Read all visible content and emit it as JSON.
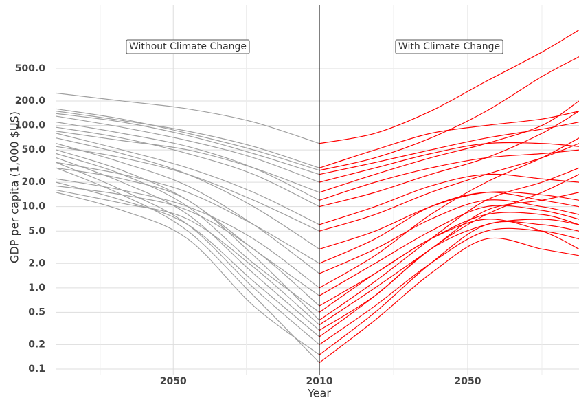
{
  "chart_data": [
    {
      "type": "line",
      "panel_title": "Without Climate Change",
      "y_label": "GDP per capita (1,000 $US)",
      "color": "#a0a0a0",
      "yscale": "log",
      "grid": true,
      "x": [
        2010,
        2028,
        2046,
        2064,
        2082
      ],
      "xlim": [
        2082,
        2010
      ],
      "xticks": [
        2050
      ],
      "xticks_minor": [
        2030,
        2070
      ],
      "ylim": [
        0.1,
        3000
      ],
      "yticks": [
        0.1,
        0.2,
        0.5,
        {
          "value": 1,
          "label": "1.0"
        },
        {
          "value": 2,
          "label": "2.0"
        },
        {
          "value": 5,
          "label": "5.0"
        },
        {
          "value": 10,
          "label": "10.0"
        },
        {
          "value": 20,
          "label": "20.0"
        },
        {
          "value": 50,
          "label": "50.0"
        },
        {
          "value": 100,
          "label": "100.0"
        },
        {
          "value": 200,
          "label": "200.0"
        },
        {
          "value": 500,
          "label": "500.0"
        }
      ],
      "series": [
        {
          "values": [
            60,
            110,
            160,
            200,
            250
          ]
        },
        {
          "values": [
            28,
            50,
            80,
            120,
            160
          ]
        },
        {
          "values": [
            30,
            55,
            85,
            115,
            150
          ]
        },
        {
          "values": [
            25,
            45,
            75,
            110,
            140
          ]
        },
        {
          "values": [
            20,
            40,
            65,
            95,
            130
          ]
        },
        {
          "values": [
            12,
            30,
            55,
            80,
            110
          ]
        },
        {
          "values": [
            6,
            15,
            30,
            50,
            80
          ]
        },
        {
          "values": [
            3,
            10,
            25,
            45,
            70
          ]
        },
        {
          "values": [
            1.5,
            6,
            18,
            35,
            60
          ]
        },
        {
          "values": [
            0.8,
            3,
            12,
            28,
            50
          ]
        },
        {
          "values": [
            0.5,
            2,
            10,
            25,
            45
          ]
        },
        {
          "values": [
            0.3,
            1.5,
            8,
            20,
            40
          ]
        },
        {
          "values": [
            0.2,
            1,
            6,
            16,
            35
          ]
        },
        {
          "values": [
            0.12,
            0.8,
            5,
            14,
            30
          ]
        },
        {
          "values": [
            0.4,
            2.5,
            12,
            22,
            30
          ]
        },
        {
          "values": [
            0.25,
            1.2,
            6,
            12,
            20
          ]
        },
        {
          "values": [
            0.15,
            0.6,
            4,
            9,
            15
          ]
        },
        {
          "values": [
            1,
            4,
            10,
            16,
            22
          ]
        },
        {
          "values": [
            2,
            6,
            15,
            25,
            35
          ]
        },
        {
          "values": [
            5,
            12,
            25,
            40,
            55
          ]
        },
        {
          "values": [
            10,
            25,
            45,
            70,
            95
          ]
        },
        {
          "values": [
            0.6,
            3,
            9,
            14,
            18
          ]
        },
        {
          "values": [
            0.35,
            1.8,
            7,
            11,
            16
          ]
        },
        {
          "values": [
            15,
            30,
            50,
            65,
            85
          ]
        }
      ]
    },
    {
      "type": "line",
      "panel_title": "With Climate Change",
      "x_label": "Year",
      "color": "#ff0000",
      "grid": true,
      "x": [
        2010,
        2025,
        2040,
        2055,
        2070,
        2080
      ],
      "xlim": [
        2010,
        2080
      ],
      "xticks": [
        2010,
        2050
      ],
      "xticks_minor": [
        2030,
        2070
      ],
      "series": [
        {
          "values": [
            60,
            80,
            150,
            350,
            800,
            1500
          ]
        },
        {
          "values": [
            28,
            40,
            70,
            150,
            400,
            700
          ]
        },
        {
          "values": [
            30,
            50,
            80,
            100,
            120,
            150
          ]
        },
        {
          "values": [
            25,
            35,
            50,
            70,
            90,
            110
          ]
        },
        {
          "values": [
            20,
            30,
            45,
            60,
            60,
            55
          ]
        },
        {
          "values": [
            12,
            20,
            30,
            40,
            45,
            50
          ]
        },
        {
          "values": [
            6,
            10,
            18,
            25,
            22,
            20
          ]
        },
        {
          "values": [
            3,
            5,
            10,
            15,
            14,
            12
          ]
        },
        {
          "values": [
            1.5,
            3,
            7,
            12,
            10,
            8
          ]
        },
        {
          "values": [
            0.8,
            2,
            5,
            10,
            9,
            7
          ]
        },
        {
          "values": [
            0.5,
            1.5,
            4,
            8,
            8,
            6
          ]
        },
        {
          "values": [
            0.3,
            0.8,
            3,
            6,
            7,
            6
          ]
        },
        {
          "values": [
            0.2,
            0.6,
            2,
            5,
            5,
            4
          ]
        },
        {
          "values": [
            0.12,
            0.4,
            1.5,
            4,
            3,
            2.5
          ]
        },
        {
          "values": [
            0.4,
            1.2,
            4,
            12,
            20,
            30
          ]
        },
        {
          "values": [
            0.25,
            0.8,
            3,
            8,
            15,
            25
          ]
        },
        {
          "values": [
            0.15,
            0.5,
            2,
            6,
            6,
            5
          ]
        },
        {
          "values": [
            1,
            2.5,
            8,
            20,
            40,
            70
          ]
        },
        {
          "values": [
            2,
            4,
            10,
            15,
            12,
            10
          ]
        },
        {
          "values": [
            5,
            8,
            15,
            25,
            40,
            60
          ]
        },
        {
          "values": [
            10,
            15,
            25,
            40,
            80,
            150
          ]
        },
        {
          "values": [
            0.6,
            1.5,
            4,
            7,
            5,
            3
          ]
        },
        {
          "values": [
            0.35,
            1,
            3,
            9,
            12,
            15
          ]
        },
        {
          "values": [
            15,
            25,
            40,
            60,
            100,
            200
          ]
        }
      ]
    }
  ]
}
